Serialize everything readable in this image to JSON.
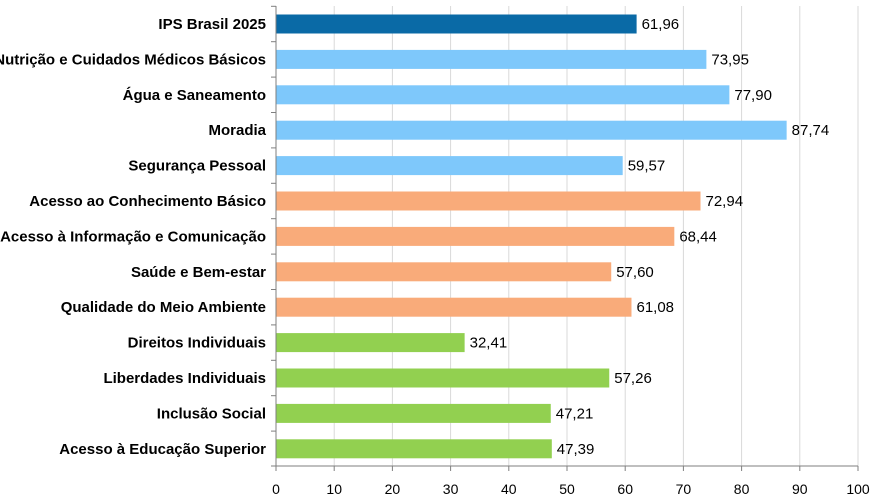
{
  "chart_data": {
    "type": "bar",
    "orientation": "horizontal",
    "title": "",
    "xlabel": "",
    "ylabel": "",
    "xlim": [
      0,
      100
    ],
    "x_ticks": [
      0,
      10,
      20,
      30,
      40,
      50,
      60,
      70,
      80,
      90,
      100
    ],
    "grid": true,
    "legend": "none",
    "decimal_separator": ",",
    "categories": [
      "IPS Brasil 2025",
      "Nutrição e Cuidados Médicos Básicos",
      "Água e Saneamento",
      "Moradia",
      "Segurança Pessoal",
      "Acesso ao Conhecimento Básico",
      "Acesso à Informação e Comunicação",
      "Saúde e Bem-estar",
      "Qualidade do Meio Ambiente",
      "Direitos Individuais",
      "Liberdades Individuais",
      "Inclusão Social",
      "Acesso à Educação Superior"
    ],
    "values": [
      61.96,
      73.95,
      77.9,
      87.74,
      59.57,
      72.94,
      68.44,
      57.6,
      61.08,
      32.41,
      57.26,
      47.21,
      47.39
    ],
    "value_labels": [
      "61,96",
      "73,95",
      "77,90",
      "87,74",
      "59,57",
      "72,94",
      "68,44",
      "57,60",
      "61,08",
      "32,41",
      "57,26",
      "47,21",
      "47,39"
    ],
    "bar_colors": [
      "#0a6aa6",
      "#7ec8fb",
      "#7ec8fb",
      "#7ec8fb",
      "#7ec8fb",
      "#f9ab7a",
      "#f9ab7a",
      "#f9ab7a",
      "#f9ab7a",
      "#92d050",
      "#92d050",
      "#92d050",
      "#92d050"
    ]
  }
}
